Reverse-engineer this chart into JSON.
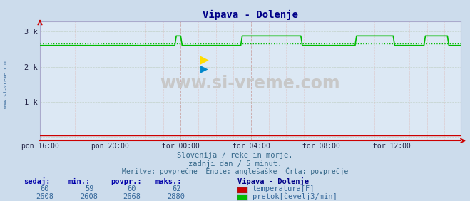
{
  "title": "Vipava - Dolenje",
  "bg_color": "#ccdcec",
  "plot_bg_color": "#dce8f4",
  "title_color": "#000088",
  "xlabel_ticks": [
    "pon 16:00",
    "pon 20:00",
    "tor 00:00",
    "tor 04:00",
    "tor 08:00",
    "tor 12:00"
  ],
  "ylabel_values": [
    0,
    1000,
    2000,
    3000
  ],
  "ylabel_labels": [
    "",
    "1 k",
    "2 k",
    "3 k"
  ],
  "ymin": -100,
  "ymax": 3300,
  "xmin": 0,
  "xmax": 287,
  "temp_value": 60,
  "temp_color": "#cc0000",
  "flow_color": "#00bb00",
  "flow_base": 2608,
  "flow_avg": 2668,
  "flow_peak": 2880,
  "spike1_start": 93,
  "spike1_end": 97,
  "spike2_start": 138,
  "spike2_end": 179,
  "spike3_start": 216,
  "spike3_end": 242,
  "spike4_start": 263,
  "spike4_end": 279,
  "subtitle1": "Slovenija / reke in morje.",
  "subtitle2": "zadnji dan / 5 minut.",
  "subtitle3": "Meritve: povprečne  Enote: anglešaške  Črta: povprečje",
  "subtitle_color": "#336688",
  "legend_title": "Vipava - Dolenje",
  "legend_title_color": "#000088",
  "legend_items": [
    {
      "label": "temperatura[F]",
      "color": "#cc0000"
    },
    {
      "label": "pretok[čevelj3/min]",
      "color": "#00bb00"
    }
  ],
  "table_headers": [
    "sedaj:",
    "min.:",
    "povpr.:",
    "maks.:"
  ],
  "table_header_color": "#0000aa",
  "table_row1": [
    "60",
    "59",
    "60",
    "62"
  ],
  "table_row2": [
    "2608",
    "2608",
    "2668",
    "2880"
  ],
  "table_data_color": "#336699",
  "watermark": "www.si-vreme.com",
  "watermark_color": "#c8c8c8",
  "left_label": "www.si-vreme.com",
  "left_label_color": "#336699",
  "arrow_color": "#cc0000",
  "grid_x_major_color": "#c8a0a0",
  "grid_x_minor_color": "#dcc0c0",
  "grid_y_color": "#b8c8b8"
}
